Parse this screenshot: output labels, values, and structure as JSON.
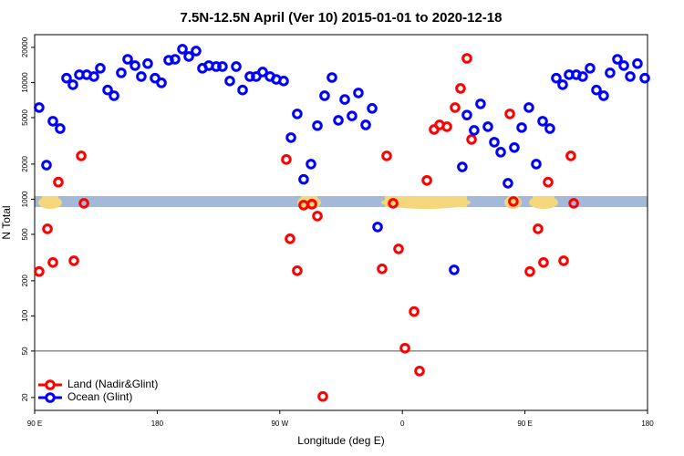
{
  "chart_data": {
    "type": "scatter",
    "title": "7.5N-12.5N April (Ver 10)   2015-01-01 to 2020-12-18",
    "x_label": "Longitude (deg E)",
    "y_label": "N Total",
    "log_y": true,
    "legend": "bottom-left",
    "hline": 50,
    "xlim": [
      90,
      540
    ],
    "ylim": [
      15.5,
      25700
    ],
    "xticks": [
      {
        "value": 90,
        "label": "90 E"
      },
      180,
      {
        "value": 270,
        "label": "90 W"
      },
      {
        "value": 360,
        "label": "0"
      },
      {
        "value": 450,
        "label": "90 E"
      },
      {
        "value": 540,
        "label": "180"
      }
    ],
    "yticks": [
      20,
      50,
      100,
      200,
      500,
      1000,
      2000,
      5000,
      10000,
      20000
    ],
    "series": [
      {
        "name": "Land (Nadir&Glint)",
        "color": "#ff0000",
        "x": [
          93.3,
          99.4,
          103.4,
          107.4,
          118.8,
          124.2,
          126.2,
          274.8,
          277.5,
          282.8,
          287.5,
          293.6,
          297.6,
          301.6,
          345.1,
          348.5,
          353.2,
          357.2,
          361.9,
          368.6,
          372.6,
          378.0,
          383.3,
          387.3,
          392.7,
          398.7,
          402.7,
          407.4,
          410.8,
          438.9,
          441.5,
          453.6,
          459.6,
          463.6,
          467.0,
          478.4,
          483.7,
          485.8
        ],
        "values": [
          240,
          557,
          287,
          1400,
          297,
          2350,
          922,
          2190,
          458,
          244,
          890,
          907,
          717,
          20.4,
          253,
          2350,
          922,
          375,
          52.9,
          109,
          33.7,
          1450,
          3960,
          4330,
          4180,
          6100,
          8900,
          16100,
          3250,
          5380,
          957,
          240,
          557,
          287,
          1400,
          297,
          2350,
          922
        ]
      },
      {
        "name": "Ocean (Glint)",
        "color": "#0000ff",
        "x": [
          93.3,
          98.7,
          103.4,
          108.7,
          113.4,
          118.1,
          122.8,
          128.2,
          133.5,
          138.2,
          143.6,
          148.3,
          153.6,
          158.3,
          163.7,
          168.3,
          173.0,
          178.4,
          183.1,
          188.4,
          193.1,
          198.5,
          203.2,
          208.5,
          213.2,
          217.9,
          223.3,
          227.9,
          233.3,
          238.0,
          242.7,
          248.0,
          252.7,
          257.4,
          262.8,
          267.4,
          272.8,
          278.2,
          282.8,
          287.5,
          292.9,
          297.6,
          302.9,
          308.3,
          313.0,
          317.7,
          323.0,
          327.7,
          333.1,
          337.8,
          341.8,
          398.0,
          404.0,
          407.4,
          412.7,
          417.4,
          422.8,
          427.5,
          432.2,
          437.5,
          442.2,
          447.6,
          452.9,
          458.3,
          463.0,
          468.3,
          473.0,
          477.7,
          482.4,
          487.7,
          492.4,
          497.8,
          502.5,
          507.8,
          512.5,
          517.9,
          522.6,
          527.3,
          532.6,
          538.0
        ],
        "values": [
          6100,
          1960,
          4660,
          4030,
          10900,
          9570,
          11660,
          11660,
          11250,
          13240,
          8620,
          7700,
          12100,
          15810,
          13960,
          11250,
          14520,
          10900,
          9930,
          15520,
          15810,
          19300,
          16700,
          18600,
          13240,
          13960,
          13700,
          13700,
          10300,
          13700,
          8620,
          11250,
          11250,
          12300,
          11250,
          10640,
          10300,
          3370,
          5380,
          1480,
          2000,
          4270,
          7700,
          11030,
          4740,
          7150,
          5170,
          8140,
          4330,
          6000,
          578,
          248,
          1890,
          5260,
          3890,
          6560,
          4180,
          3080,
          2530,
          1370,
          2770,
          4110,
          6100,
          2000,
          4660,
          4030,
          10900,
          9570,
          11660,
          11660,
          11250,
          13240,
          8620,
          7700,
          12100,
          15810,
          13960,
          11250,
          14520,
          10900
        ]
      }
    ]
  }
}
